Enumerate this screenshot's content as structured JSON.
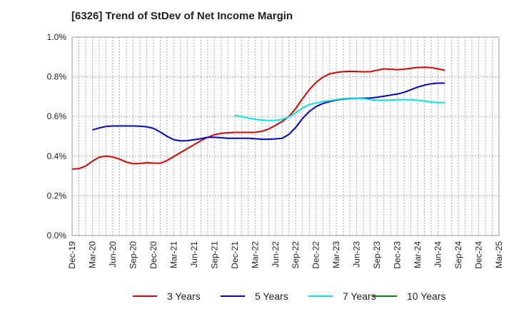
{
  "title": "[6326]  Trend of StDev of Net Income Margin",
  "chart_data": {
    "type": "line",
    "title": "[6326]  Trend of StDev of Net Income Margin",
    "xlabel": "",
    "ylabel": "",
    "ylim": [
      0,
      1.0
    ],
    "y_ticks": [
      "0.0%",
      "0.2%",
      "0.4%",
      "0.6%",
      "0.8%",
      "1.0%"
    ],
    "x_ticks": [
      "Dec-19",
      "Mar-20",
      "Jun-20",
      "Sep-20",
      "Dec-20",
      "Mar-21",
      "Jun-21",
      "Sep-21",
      "Dec-21",
      "Mar-22",
      "Jun-22",
      "Sep-22",
      "Dec-22",
      "Mar-23",
      "Jun-23",
      "Sep-23",
      "Dec-23",
      "Mar-24",
      "Jun-24",
      "Sep-24",
      "Dec-24",
      "Mar-25"
    ],
    "grid": true,
    "legend_position": "bottom",
    "series": [
      {
        "name": "3 Years",
        "color": "#dd0000",
        "points": [
          [
            0,
            0.335
          ],
          [
            1,
            0.337
          ],
          [
            2,
            0.35
          ],
          [
            3,
            0.375
          ],
          [
            4,
            0.395
          ],
          [
            5,
            0.4
          ],
          [
            6,
            0.396
          ],
          [
            7,
            0.385
          ],
          [
            8,
            0.37
          ],
          [
            9,
            0.362
          ],
          [
            10,
            0.363
          ],
          [
            11,
            0.367
          ],
          [
            12,
            0.365
          ],
          [
            13,
            0.364
          ],
          [
            14,
            0.378
          ],
          [
            15,
            0.398
          ],
          [
            16,
            0.418
          ],
          [
            17,
            0.438
          ],
          [
            18,
            0.458
          ],
          [
            19,
            0.478
          ],
          [
            20,
            0.495
          ],
          [
            21,
            0.508
          ],
          [
            22,
            0.515
          ],
          [
            23,
            0.518
          ],
          [
            24,
            0.52
          ],
          [
            25,
            0.52
          ],
          [
            26,
            0.52
          ],
          [
            27,
            0.52
          ],
          [
            28,
            0.525
          ],
          [
            29,
            0.537
          ],
          [
            30,
            0.555
          ],
          [
            31,
            0.575
          ],
          [
            32,
            0.6
          ],
          [
            33,
            0.64
          ],
          [
            34,
            0.69
          ],
          [
            35,
            0.735
          ],
          [
            36,
            0.772
          ],
          [
            37,
            0.798
          ],
          [
            38,
            0.815
          ],
          [
            39,
            0.822
          ],
          [
            40,
            0.826
          ],
          [
            41,
            0.828
          ],
          [
            42,
            0.827
          ],
          [
            43,
            0.825
          ],
          [
            44,
            0.826
          ],
          [
            45,
            0.833
          ],
          [
            46,
            0.84
          ],
          [
            47,
            0.838
          ],
          [
            48,
            0.836
          ],
          [
            49,
            0.838
          ],
          [
            50,
            0.843
          ],
          [
            51,
            0.847
          ],
          [
            52,
            0.848
          ],
          [
            53,
            0.846
          ],
          [
            54,
            0.84
          ],
          [
            55,
            0.833
          ]
        ]
      },
      {
        "name": "5 Years",
        "color": "#0000cc",
        "points": [
          [
            3,
            0.532
          ],
          [
            4,
            0.542
          ],
          [
            5,
            0.55
          ],
          [
            6,
            0.552
          ],
          [
            7,
            0.552
          ],
          [
            8,
            0.552
          ],
          [
            9,
            0.552
          ],
          [
            10,
            0.551
          ],
          [
            11,
            0.548
          ],
          [
            12,
            0.54
          ],
          [
            13,
            0.522
          ],
          [
            14,
            0.5
          ],
          [
            15,
            0.483
          ],
          [
            16,
            0.477
          ],
          [
            17,
            0.478
          ],
          [
            18,
            0.483
          ],
          [
            19,
            0.488
          ],
          [
            20,
            0.495
          ],
          [
            21,
            0.495
          ],
          [
            22,
            0.493
          ],
          [
            23,
            0.49
          ],
          [
            24,
            0.49
          ],
          [
            25,
            0.49
          ],
          [
            26,
            0.49
          ],
          [
            27,
            0.488
          ],
          [
            28,
            0.485
          ],
          [
            29,
            0.485
          ],
          [
            30,
            0.487
          ],
          [
            31,
            0.49
          ],
          [
            32,
            0.51
          ],
          [
            33,
            0.545
          ],
          [
            34,
            0.59
          ],
          [
            35,
            0.625
          ],
          [
            36,
            0.65
          ],
          [
            37,
            0.665
          ],
          [
            38,
            0.675
          ],
          [
            39,
            0.683
          ],
          [
            40,
            0.688
          ],
          [
            41,
            0.69
          ],
          [
            42,
            0.692
          ],
          [
            43,
            0.692
          ],
          [
            44,
            0.693
          ],
          [
            45,
            0.697
          ],
          [
            46,
            0.702
          ],
          [
            47,
            0.708
          ],
          [
            48,
            0.713
          ],
          [
            49,
            0.722
          ],
          [
            50,
            0.735
          ],
          [
            51,
            0.748
          ],
          [
            52,
            0.758
          ],
          [
            53,
            0.765
          ],
          [
            54,
            0.768
          ],
          [
            55,
            0.768
          ]
        ]
      },
      {
        "name": "7 Years",
        "color": "#00e5e5",
        "points": [
          [
            24,
            0.605
          ],
          [
            25,
            0.6
          ],
          [
            26,
            0.592
          ],
          [
            27,
            0.586
          ],
          [
            28,
            0.582
          ],
          [
            29,
            0.58
          ],
          [
            30,
            0.58
          ],
          [
            31,
            0.585
          ],
          [
            32,
            0.598
          ],
          [
            33,
            0.618
          ],
          [
            34,
            0.643
          ],
          [
            35,
            0.66
          ],
          [
            36,
            0.668
          ],
          [
            37,
            0.675
          ],
          [
            38,
            0.68
          ],
          [
            39,
            0.685
          ],
          [
            40,
            0.69
          ],
          [
            41,
            0.692
          ],
          [
            42,
            0.692
          ],
          [
            43,
            0.69
          ],
          [
            44,
            0.685
          ],
          [
            45,
            0.682
          ],
          [
            46,
            0.682
          ],
          [
            47,
            0.683
          ],
          [
            48,
            0.685
          ],
          [
            49,
            0.685
          ],
          [
            50,
            0.685
          ],
          [
            51,
            0.682
          ],
          [
            52,
            0.678
          ],
          [
            53,
            0.672
          ],
          [
            54,
            0.67
          ],
          [
            55,
            0.67
          ]
        ]
      },
      {
        "name": "10 Years",
        "color": "#008800",
        "points": []
      }
    ]
  }
}
